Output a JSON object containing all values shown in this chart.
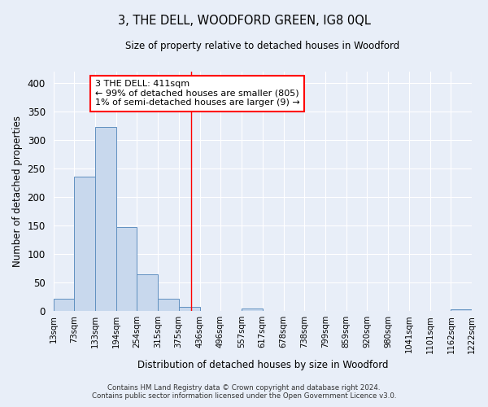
{
  "title": "3, THE DELL, WOODFORD GREEN, IG8 0QL",
  "subtitle": "Size of property relative to detached houses in Woodford",
  "xlabel": "Distribution of detached houses by size in Woodford",
  "ylabel": "Number of detached properties",
  "bar_color": "#c8d8ed",
  "bar_edge_color": "#6090c0",
  "background_color": "#e8eef8",
  "grid_color": "#ffffff",
  "red_line_x": 411,
  "annotation_text": "3 THE DELL: 411sqm\n← 99% of detached houses are smaller (805)\n1% of semi-detached houses are larger (9) →",
  "annotation_box_color": "white",
  "annotation_box_edge": "red",
  "bin_edges": [
    13,
    73,
    133,
    194,
    254,
    315,
    375,
    436,
    496,
    557,
    617,
    678,
    738,
    799,
    859,
    920,
    980,
    1041,
    1101,
    1162,
    1222
  ],
  "bar_heights": [
    22,
    235,
    322,
    147,
    64,
    22,
    7,
    0,
    0,
    5,
    0,
    0,
    0,
    0,
    0,
    0,
    0,
    0,
    0,
    3
  ],
  "ylim": [
    0,
    420
  ],
  "yticks": [
    0,
    50,
    100,
    150,
    200,
    250,
    300,
    350,
    400
  ],
  "footer_line1": "Contains HM Land Registry data © Crown copyright and database right 2024.",
  "footer_line2": "Contains public sector information licensed under the Open Government Licence v3.0."
}
